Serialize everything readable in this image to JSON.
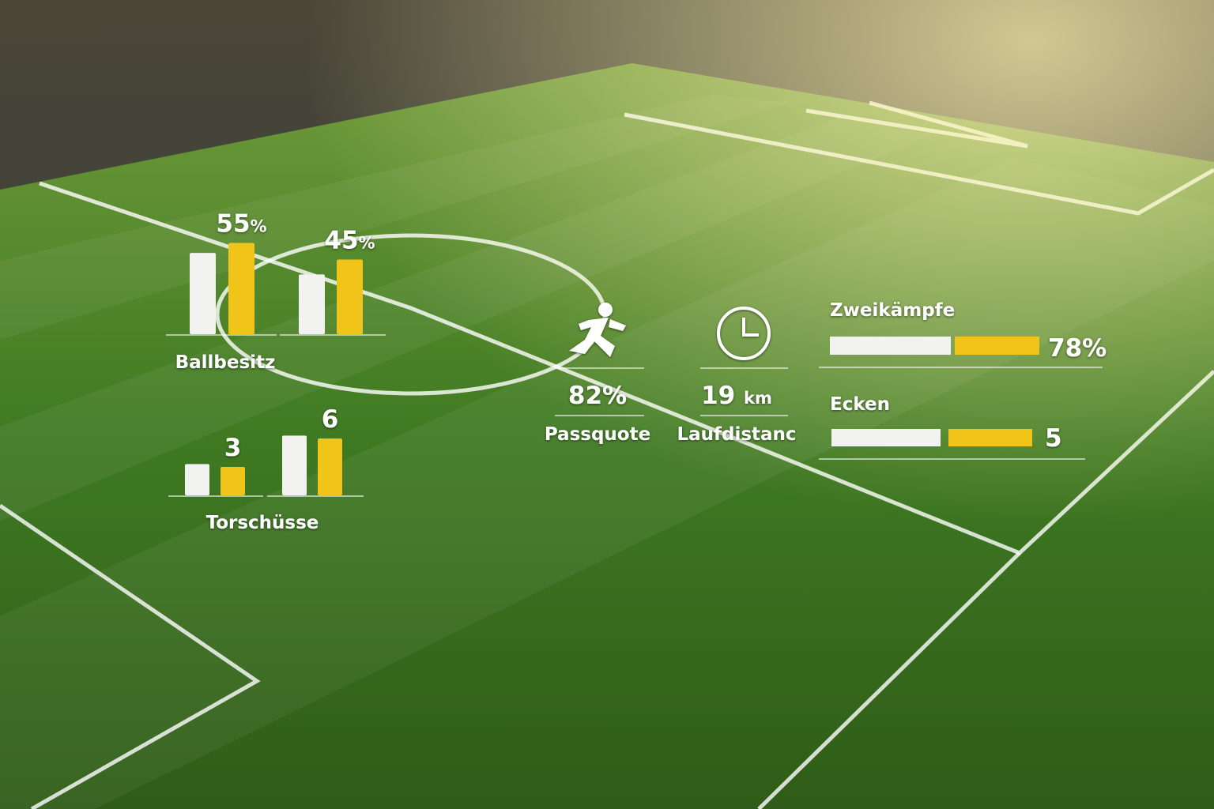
{
  "ballbesitz": {
    "label": "Ballbesitz",
    "groups": [
      {
        "white": 49,
        "yellow": 55,
        "unit": "%"
      },
      {
        "white": 36,
        "yellow": 45,
        "unit": "%"
      }
    ]
  },
  "torschuesse": {
    "label": "Torschüsse",
    "groups": [
      {
        "white": 3.3,
        "yellow": 3
      },
      {
        "white": 6.3,
        "yellow": 6
      }
    ]
  },
  "passquote": {
    "value": 82,
    "unit": "%",
    "label": "Passquote"
  },
  "laufdistanz": {
    "value": 19,
    "unit": "km",
    "label": "Laufdistanc"
  },
  "zweikaempfe": {
    "label": "Zweikämpfe",
    "value": 78,
    "unit": "%"
  },
  "ecken": {
    "label": "Ecken",
    "value": 5
  }
}
